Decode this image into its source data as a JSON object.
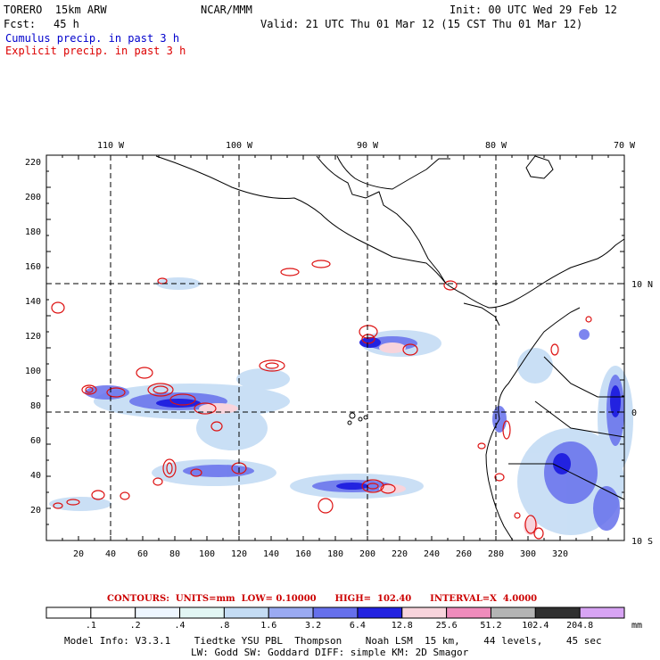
{
  "header": {
    "model": "TORERO  15km ARW",
    "org": "NCAR/MMM",
    "init": "Init: 00 UTC Wed 29 Feb 12",
    "fcst_label": "Fcst:",
    "fcst_hours": "45 h",
    "valid": "Valid: 21 UTC Thu 01 Mar 12 (15 CST Thu 01 Mar 12)",
    "field1": "Cumulus precip. in past 3 h",
    "field2": "Explicit precip. in past 3 h",
    "field1_color": "#0000cc",
    "field2_color": "#dd0000"
  },
  "axes": {
    "top_lon_labels": [
      "110 W",
      "100 W",
      "90 W",
      "80 W",
      "70 W"
    ],
    "right_lat_labels": [
      "10 N",
      "0",
      "10 S"
    ],
    "y_ticks": [
      "220",
      "200",
      "180",
      "160",
      "140",
      "120",
      "100",
      "80",
      "60",
      "40",
      "20"
    ],
    "x_ticks": [
      "20",
      "40",
      "60",
      "80",
      "100",
      "120",
      "140",
      "160",
      "180",
      "200",
      "220",
      "240",
      "260",
      "280",
      "300",
      "320"
    ]
  },
  "contours": {
    "label": "CONTOURS:  UNITS=mm  LOW= 0.10000      HIGH=  102.40      INTERVAL=X  4.0000"
  },
  "colorbar": {
    "labels": [
      ".1",
      ".2",
      ".4",
      ".8",
      "1.6",
      "3.2",
      "6.4",
      "12.8",
      "25.6",
      "51.2",
      "102.4",
      "204.8"
    ],
    "unit": "mm",
    "colors": [
      "#ffffff",
      "#ffffff",
      "#eef6ff",
      "#e2f6f4",
      "#c4dcf4",
      "#9aaaf2",
      "#6670ec",
      "#2222e0",
      "#f8d4dc",
      "#f08cbc",
      "#b4b4b4",
      "#303030",
      "#d8a4f4"
    ]
  },
  "footer": {
    "line1": "Model Info: V3.3.1    Tiedtke YSU PBL  Thompson    Noah LSM  15 km,    44 levels,    45 sec",
    "line2": "LW: Godd SW: Goddard DIFF: simple KM: 2D Smagor"
  }
}
